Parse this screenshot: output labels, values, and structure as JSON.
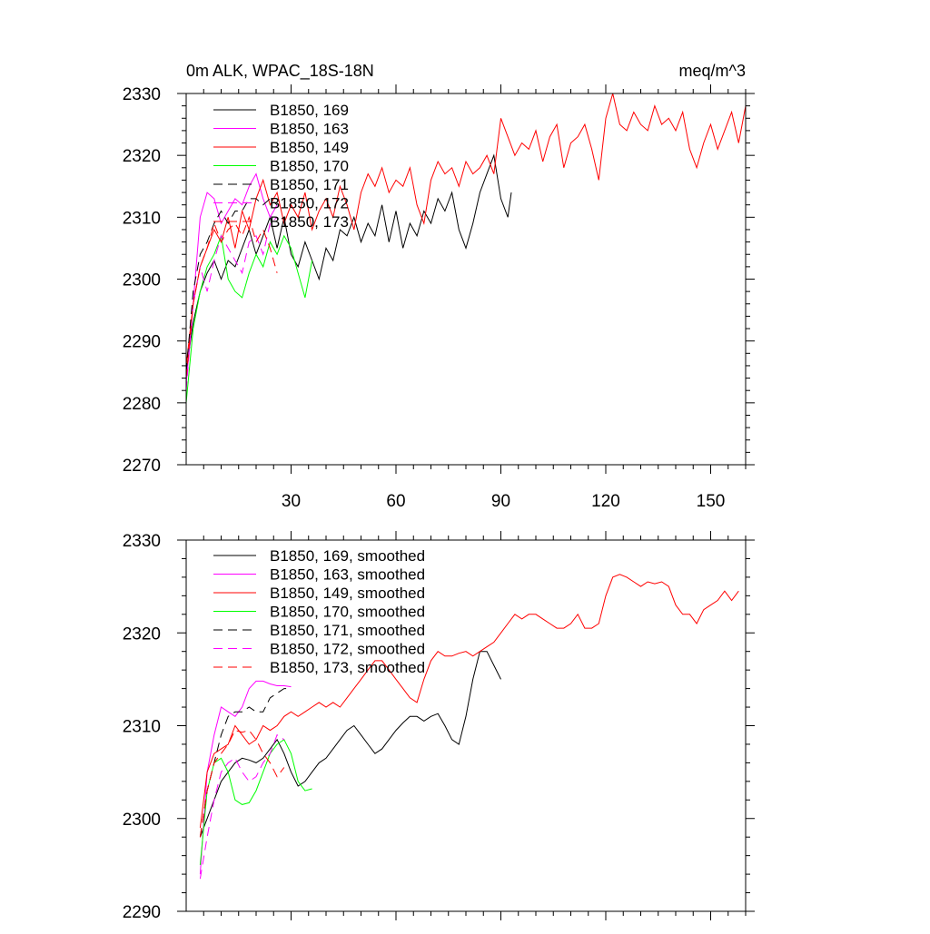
{
  "chart_data": [
    {
      "type": "line",
      "title": "0m ALK, WPAC_18S-18N",
      "units": "meq/m^3",
      "xlim": [
        0,
        160
      ],
      "ylim": [
        2270,
        2330
      ],
      "xticks": [
        30,
        60,
        90,
        120,
        150
      ],
      "yticks": [
        2270,
        2280,
        2290,
        2300,
        2310,
        2320,
        2330
      ],
      "grid": false,
      "legend_position": "top-left",
      "series": [
        {
          "name": "B1850, 169",
          "color": "#000000",
          "dash": "solid",
          "x": [
            0,
            2,
            4,
            6,
            8,
            10,
            12,
            14,
            16,
            18,
            20,
            22,
            24,
            26,
            28,
            30,
            32,
            34,
            36,
            38,
            40,
            42,
            44,
            46,
            48,
            50,
            52,
            54,
            56,
            58,
            60,
            62,
            64,
            66,
            68,
            70,
            72,
            74,
            76,
            78,
            80,
            82,
            84,
            86,
            88,
            90,
            92,
            93
          ],
          "y": [
            2285,
            2293,
            2298,
            2301,
            2303,
            2300,
            2303,
            2302,
            2305,
            2308,
            2304,
            2307,
            2310,
            2305,
            2310,
            2304,
            2302,
            2306,
            2303,
            2300,
            2305,
            2303,
            2308,
            2307,
            2310,
            2306,
            2309,
            2307,
            2312,
            2306,
            2311,
            2305,
            2309,
            2307,
            2311,
            2309,
            2313,
            2311,
            2314,
            2308,
            2305,
            2309,
            2314,
            2317,
            2320,
            2313,
            2310,
            2314
          ]
        },
        {
          "name": "B1850, 163",
          "color": "#ff00ff",
          "dash": "solid",
          "x": [
            0,
            2,
            4,
            6,
            8,
            10,
            12,
            14,
            16,
            18,
            20,
            22,
            24,
            26
          ],
          "y": [
            2283,
            2296,
            2310,
            2314,
            2313,
            2309,
            2311,
            2313,
            2312,
            2315,
            2317,
            2313,
            2310,
            2312
          ]
        },
        {
          "name": "B1850, 149",
          "color": "#ff0000",
          "dash": "solid",
          "x": [
            0,
            2,
            4,
            6,
            8,
            10,
            12,
            14,
            16,
            18,
            20,
            22,
            24,
            26,
            28,
            30,
            32,
            34,
            36,
            38,
            40,
            42,
            44,
            46,
            48,
            50,
            52,
            54,
            56,
            58,
            60,
            62,
            64,
            66,
            68,
            70,
            72,
            74,
            76,
            78,
            80,
            82,
            84,
            86,
            88,
            90,
            92,
            94,
            96,
            98,
            100,
            102,
            104,
            106,
            108,
            110,
            112,
            114,
            116,
            118,
            120,
            122,
            124,
            126,
            128,
            130,
            132,
            134,
            136,
            138,
            140,
            142,
            144,
            146,
            148,
            150,
            152,
            154,
            156,
            158,
            160
          ],
          "y": [
            2286,
            2296,
            2302,
            2305,
            2308,
            2306,
            2310,
            2305,
            2311,
            2308,
            2313,
            2316,
            2312,
            2314,
            2309,
            2312,
            2310,
            2314,
            2308,
            2311,
            2313,
            2310,
            2315,
            2312,
            2308,
            2314,
            2317,
            2315,
            2318,
            2314,
            2316,
            2315,
            2318,
            2312,
            2309,
            2316,
            2319,
            2317,
            2318,
            2315,
            2319,
            2317,
            2318,
            2320,
            2317,
            2326,
            2323,
            2320,
            2322,
            2321,
            2324,
            2319,
            2323,
            2325,
            2318,
            2322,
            2323,
            2325,
            2321,
            2316,
            2326,
            2330,
            2325,
            2324,
            2327,
            2325,
            2324,
            2328,
            2325,
            2326,
            2324,
            2327,
            2321,
            2318,
            2322,
            2325,
            2321,
            2324,
            2327,
            2322,
            2328
          ]
        },
        {
          "name": "B1850, 170",
          "color": "#00ff00",
          "dash": "solid",
          "x": [
            0,
            2,
            4,
            6,
            8,
            10,
            12,
            14,
            16,
            18,
            20,
            22,
            24,
            26,
            28,
            30,
            32,
            34,
            36
          ],
          "y": [
            2280,
            2292,
            2298,
            2302,
            2304,
            2307,
            2300,
            2298,
            2297,
            2301,
            2304,
            2302,
            2306,
            2304,
            2307,
            2305,
            2301,
            2297,
            2303
          ]
        },
        {
          "name": "B1850, 171",
          "color": "#000000",
          "dash": "dash",
          "x": [
            0,
            2,
            4,
            6,
            8,
            10,
            12,
            14,
            16,
            18,
            20,
            22,
            24,
            26
          ],
          "y": [
            2285,
            2298,
            2304,
            2306,
            2309,
            2311,
            2309,
            2311,
            2311,
            2313,
            2313,
            2312,
            2313,
            2312
          ]
        },
        {
          "name": "B1850, 172",
          "color": "#ff00ff",
          "dash": "dash",
          "x": [
            0,
            2,
            4,
            6,
            8,
            10,
            12,
            14,
            16,
            18,
            20,
            22,
            24,
            26
          ],
          "y": [
            2282,
            2296,
            2302,
            2298,
            2303,
            2307,
            2305,
            2303,
            2301,
            2306,
            2307,
            2304,
            2309,
            2310
          ]
        },
        {
          "name": "B1850, 173",
          "color": "#ff0000",
          "dash": "dash",
          "x": [
            0,
            2,
            4,
            6,
            8,
            10,
            12,
            14,
            16,
            18,
            20,
            22,
            24,
            26
          ],
          "y": [
            2284,
            2296,
            2302,
            2305,
            2309,
            2306,
            2308,
            2309,
            2307,
            2310,
            2306,
            2308,
            2305,
            2301
          ]
        }
      ]
    },
    {
      "type": "line",
      "xlim": [
        0,
        160
      ],
      "ylim": [
        2290,
        2330
      ],
      "xticks": [
        30,
        60,
        90,
        120,
        150
      ],
      "yticks": [
        2290,
        2300,
        2310,
        2320,
        2330
      ],
      "grid": false,
      "legend_position": "top-left",
      "series": [
        {
          "name": "B1850, 169, smoothed",
          "color": "#000000",
          "dash": "solid",
          "x": [
            4,
            6,
            8,
            10,
            12,
            14,
            16,
            18,
            20,
            22,
            24,
            26,
            28,
            30,
            32,
            34,
            36,
            38,
            40,
            42,
            44,
            46,
            48,
            50,
            52,
            54,
            56,
            58,
            60,
            62,
            64,
            66,
            68,
            70,
            72,
            74,
            76,
            78,
            80,
            82,
            84,
            86,
            88,
            90
          ],
          "y": [
            2298,
            2300,
            2302,
            2304,
            2305,
            2306,
            2306.5,
            2306.3,
            2306,
            2306.5,
            2307.5,
            2308.5,
            2307,
            2305,
            2303.5,
            2304,
            2305,
            2306,
            2306.5,
            2307.5,
            2308.5,
            2309.5,
            2310,
            2309,
            2308,
            2307,
            2307.5,
            2308.5,
            2309.5,
            2310.3,
            2311,
            2311,
            2310.5,
            2311,
            2311.3,
            2310,
            2308.5,
            2308,
            2311,
            2315,
            2318,
            2318,
            2316.5,
            2315
          ]
        },
        {
          "name": "B1850, 163, smoothed",
          "color": "#ff00ff",
          "dash": "solid",
          "x": [
            4,
            6,
            8,
            10,
            12,
            14,
            16,
            18,
            20,
            22,
            24,
            26,
            28,
            30
          ],
          "y": [
            2294,
            2305,
            2309,
            2312,
            2311.5,
            2311,
            2312,
            2314,
            2314.8,
            2314.8,
            2314.5,
            2314.3,
            2314.3,
            2314.2
          ]
        },
        {
          "name": "B1850, 149, smoothed",
          "color": "#ff0000",
          "dash": "solid",
          "x": [
            4,
            6,
            8,
            10,
            12,
            14,
            16,
            18,
            20,
            22,
            24,
            26,
            28,
            30,
            32,
            34,
            36,
            38,
            40,
            42,
            44,
            46,
            48,
            50,
            52,
            54,
            56,
            58,
            60,
            62,
            64,
            66,
            68,
            70,
            72,
            74,
            76,
            78,
            80,
            82,
            84,
            86,
            88,
            90,
            92,
            94,
            96,
            98,
            100,
            102,
            104,
            106,
            108,
            110,
            112,
            114,
            116,
            118,
            120,
            122,
            124,
            126,
            128,
            130,
            132,
            134,
            136,
            138,
            140,
            142,
            144,
            146,
            148,
            150,
            152,
            154,
            156,
            158
          ],
          "y": [
            2299,
            2305,
            2307,
            2307.5,
            2308,
            2310,
            2309,
            2308,
            2308.5,
            2310,
            2309.5,
            2310,
            2311,
            2311.5,
            2311,
            2311.5,
            2312,
            2312.5,
            2312,
            2312.5,
            2312,
            2313,
            2314,
            2315,
            2316,
            2317,
            2317,
            2316,
            2315,
            2314,
            2313,
            2312.5,
            2315,
            2317,
            2318,
            2317.5,
            2317.5,
            2317.8,
            2318,
            2317.5,
            2318,
            2318.5,
            2319,
            2320,
            2321,
            2322,
            2321.5,
            2322,
            2322,
            2321.5,
            2321,
            2320.5,
            2320.5,
            2321,
            2322,
            2320.5,
            2320.5,
            2321,
            2324,
            2326,
            2326.3,
            2326,
            2325.5,
            2325,
            2325.5,
            2325.3,
            2325.5,
            2325,
            2323,
            2322,
            2322,
            2321,
            2322.5,
            2323,
            2323.5,
            2324.5,
            2323.5,
            2324.5
          ]
        },
        {
          "name": "B1850, 170, smoothed",
          "color": "#00ff00",
          "dash": "solid",
          "x": [
            4,
            6,
            8,
            10,
            12,
            14,
            16,
            18,
            20,
            22,
            24,
            26,
            28,
            30,
            32,
            34,
            36
          ],
          "y": [
            2295,
            2303,
            2306,
            2306.5,
            2305,
            2302,
            2301.5,
            2301.7,
            2303,
            2305,
            2307,
            2308,
            2308.5,
            2307,
            2304,
            2303,
            2303.2
          ]
        },
        {
          "name": "B1850, 171, smoothed",
          "color": "#000000",
          "dash": "dash",
          "x": [
            4,
            6,
            8,
            10,
            12,
            14,
            16,
            18,
            20,
            22,
            24,
            26,
            28,
            30
          ],
          "y": [
            2298,
            2303,
            2306,
            2309,
            2311,
            2311.5,
            2311.5,
            2312,
            2311.5,
            2311.5,
            2313,
            2313.5,
            2314,
            2314
          ]
        },
        {
          "name": "B1850, 172, smoothed",
          "color": "#ff00ff",
          "dash": "dash",
          "x": [
            4,
            6,
            8,
            10,
            12,
            14,
            16,
            18,
            20,
            22,
            24,
            26,
            28
          ],
          "y": [
            2293.5,
            2298,
            2302,
            2305,
            2306,
            2306.5,
            2305,
            2304,
            2304.5,
            2306,
            2307,
            2309,
            2308.5
          ]
        },
        {
          "name": "B1850, 173, smoothed",
          "color": "#ff0000",
          "dash": "dash",
          "x": [
            4,
            6,
            8,
            10,
            12,
            14,
            16,
            18,
            20,
            22,
            24,
            26,
            28
          ],
          "y": [
            2298,
            2303,
            2306,
            2307,
            2308,
            2309.5,
            2309.3,
            2309.5,
            2308.5,
            2307,
            2306,
            2304.5,
            2305.5
          ]
        }
      ]
    }
  ]
}
